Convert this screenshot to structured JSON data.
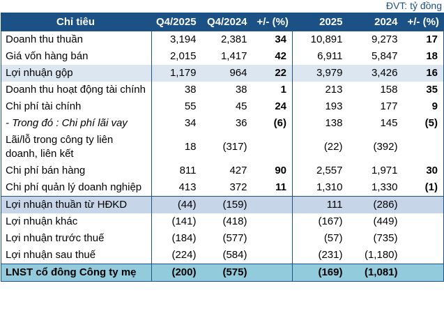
{
  "unit_label": "ĐVT: tỷ đồng",
  "colors": {
    "header_bg": "#1C5186",
    "border": "#1C5186",
    "highlight_light": "#DCE6F0",
    "highlight_medium": "#C6D5E8",
    "total_bg": "#92CBDC",
    "positive": "#339966",
    "negative": "#FF0000",
    "header_text": "#FFFFFF"
  },
  "chart_data": {
    "type": "table",
    "title": "",
    "unit_label": "ĐVT: tỷ đồng",
    "columns": [
      "Chỉ tiêu",
      "Q4/2025",
      "Q4/2024",
      "+/- (%)",
      "2025",
      "2024",
      "+/- (%)"
    ],
    "rows": [
      {
        "label": "Doanh thu thuần",
        "style": "normal",
        "cells": [
          {
            "v": "3,194"
          },
          {
            "v": "2,381"
          },
          {
            "v": "34",
            "c": "green",
            "b": true
          },
          {
            "v": "10,891"
          },
          {
            "v": "9,273"
          },
          {
            "v": "17",
            "c": "green",
            "b": true
          }
        ]
      },
      {
        "label": "Giá vốn hàng bán",
        "style": "normal",
        "cells": [
          {
            "v": "2,015"
          },
          {
            "v": "1,417"
          },
          {
            "v": "42",
            "c": "green",
            "b": true
          },
          {
            "v": "6,911"
          },
          {
            "v": "5,847"
          },
          {
            "v": "18",
            "c": "green",
            "b": true
          }
        ]
      },
      {
        "label": "Lợi nhuận gộp",
        "style": "hl1",
        "cells": [
          {
            "v": "1,179"
          },
          {
            "v": "964"
          },
          {
            "v": "22",
            "c": "green",
            "b": true
          },
          {
            "v": "3,979"
          },
          {
            "v": "3,426"
          },
          {
            "v": "16",
            "c": "green",
            "b": true
          }
        ]
      },
      {
        "label": "Doanh thu hoạt động tài chính",
        "style": "normal",
        "cells": [
          {
            "v": "38"
          },
          {
            "v": "38"
          },
          {
            "v": "1",
            "c": "green",
            "b": true
          },
          {
            "v": "213"
          },
          {
            "v": "158"
          },
          {
            "v": "35",
            "c": "green",
            "b": true
          }
        ]
      },
      {
        "label": "Chi phí tài chính",
        "style": "normal",
        "cells": [
          {
            "v": "55"
          },
          {
            "v": "45"
          },
          {
            "v": "24",
            "c": "green",
            "b": true
          },
          {
            "v": "193"
          },
          {
            "v": "177"
          },
          {
            "v": "9",
            "c": "green",
            "b": true
          }
        ]
      },
      {
        "label": "- Trong đó : Chi phí lãi vay",
        "style": "italic",
        "cells": [
          {
            "v": "34"
          },
          {
            "v": "36"
          },
          {
            "v": "(6)",
            "c": "red",
            "b": true
          },
          {
            "v": "138"
          },
          {
            "v": "145"
          },
          {
            "v": "(5)",
            "c": "red",
            "b": true
          }
        ]
      },
      {
        "label": "Lãi/lỗ trong công ty liên doanh, liên kết",
        "style": "normal",
        "cells": [
          {
            "v": "18"
          },
          {
            "v": "(317)",
            "c": "red"
          },
          {
            "v": ""
          },
          {
            "v": "(22)",
            "c": "red"
          },
          {
            "v": "(392)",
            "c": "red"
          },
          {
            "v": ""
          }
        ]
      },
      {
        "label": "Chi phí bán hàng",
        "style": "normal",
        "cells": [
          {
            "v": "811"
          },
          {
            "v": "427"
          },
          {
            "v": "90",
            "c": "green",
            "b": true
          },
          {
            "v": "2,557"
          },
          {
            "v": "1,971"
          },
          {
            "v": "30",
            "c": "green",
            "b": true
          }
        ]
      },
      {
        "label": "Chi phí quản lý doanh nghiệp",
        "style": "normal",
        "cells": [
          {
            "v": "413"
          },
          {
            "v": "372"
          },
          {
            "v": "11",
            "c": "green",
            "b": true
          },
          {
            "v": "1,310"
          },
          {
            "v": "1,330"
          },
          {
            "v": "(1)",
            "c": "red",
            "b": true
          }
        ]
      },
      {
        "label": "Lợi nhuận thuần từ HĐKD",
        "style": "hl2",
        "cells": [
          {
            "v": "(44)",
            "c": "red"
          },
          {
            "v": "(159)",
            "c": "red"
          },
          {
            "v": ""
          },
          {
            "v": "111"
          },
          {
            "v": "(286)",
            "c": "red"
          },
          {
            "v": ""
          }
        ]
      },
      {
        "label": "Lợi nhuận khác",
        "style": "normal",
        "cells": [
          {
            "v": "(141)",
            "c": "red"
          },
          {
            "v": "(418)",
            "c": "red"
          },
          {
            "v": ""
          },
          {
            "v": "(167)",
            "c": "red"
          },
          {
            "v": "(449)",
            "c": "red"
          },
          {
            "v": ""
          }
        ]
      },
      {
        "label": "Lợi nhuận trước thuế",
        "style": "normal",
        "cells": [
          {
            "v": "(184)",
            "c": "red"
          },
          {
            "v": "(577)",
            "c": "red"
          },
          {
            "v": ""
          },
          {
            "v": "(57)",
            "c": "red"
          },
          {
            "v": "(735)",
            "c": "red"
          },
          {
            "v": ""
          }
        ]
      },
      {
        "label": "Lợi nhuận sau thuế",
        "style": "normal",
        "cells": [
          {
            "v": "(224)",
            "c": "red"
          },
          {
            "v": "(584)",
            "c": "red"
          },
          {
            "v": ""
          },
          {
            "v": "(231)",
            "c": "red"
          },
          {
            "v": "(1,180)",
            "c": "red"
          },
          {
            "v": ""
          }
        ]
      },
      {
        "label": "LNST cổ đông Công ty mẹ",
        "style": "total",
        "cells": [
          {
            "v": "(200)",
            "c": "red",
            "b": true
          },
          {
            "v": "(575)",
            "c": "red",
            "b": true
          },
          {
            "v": ""
          },
          {
            "v": "(169)",
            "c": "red",
            "b": true
          },
          {
            "v": "(1,081)",
            "c": "red",
            "b": true
          },
          {
            "v": ""
          }
        ]
      }
    ]
  }
}
